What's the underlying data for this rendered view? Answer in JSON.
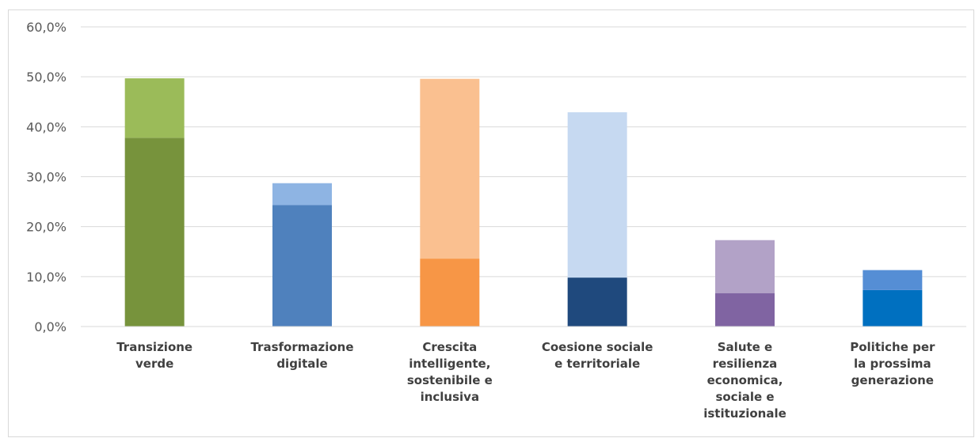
{
  "chart_data": {
    "type": "bar",
    "stacked": true,
    "categories": [
      [
        "Transizione",
        "verde"
      ],
      [
        "Trasformazione",
        "digitale"
      ],
      [
        "Crescita",
        "intelligente,",
        "sostenibile e",
        "inclusiva"
      ],
      [
        "Coesione sociale",
        "e territoriale"
      ],
      [
        "Salute e",
        "resilienza",
        "economica,",
        "sociale e",
        "istituzionale"
      ],
      [
        "Politiche per",
        "la prossima",
        "generazione"
      ]
    ],
    "series": [
      {
        "values": [
          37.8,
          24.3,
          13.6,
          9.8,
          6.7,
          7.3
        ]
      },
      {
        "values": [
          11.9,
          4.4,
          36.0,
          33.1,
          10.6,
          4.0
        ]
      }
    ],
    "colors": {
      "base": [
        "#77933c",
        "#4f81bd",
        "#f79646",
        "#1f497d",
        "#8064a2",
        "#0070c0"
      ],
      "top": [
        "#9bbb59",
        "#8eb4e3",
        "#fac090",
        "#c6d9f1",
        "#b2a2c7",
        "#558ed5"
      ]
    },
    "ylim": [
      0,
      60
    ],
    "yticks": [
      "0,0%",
      "10,0%",
      "20,0%",
      "30,0%",
      "40,0%",
      "50,0%",
      "60,0%"
    ],
    "grid": true,
    "title": "",
    "xlabel": "",
    "ylabel": ""
  }
}
